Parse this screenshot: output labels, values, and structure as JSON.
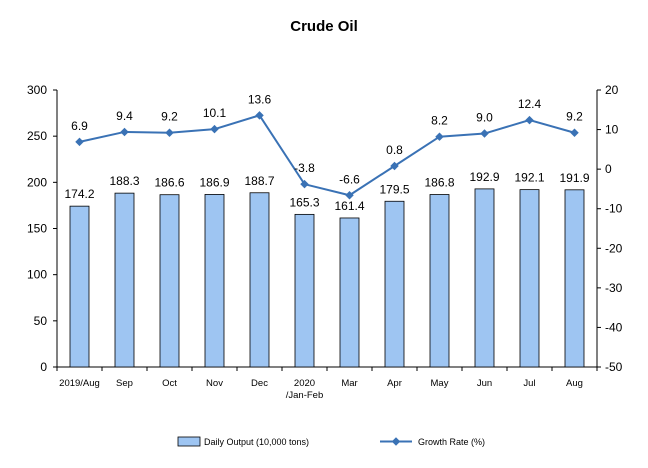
{
  "chart_data": {
    "type": "bar+line",
    "title": "Crude Oil",
    "categories": [
      [
        "2019/Aug"
      ],
      [
        "Sep"
      ],
      [
        "Oct"
      ],
      [
        "Nov"
      ],
      [
        "Dec"
      ],
      [
        "2020",
        "/Jan-Feb"
      ],
      [
        "Mar"
      ],
      [
        "Apr"
      ],
      [
        "May"
      ],
      [
        "Jun"
      ],
      [
        "Jul"
      ],
      [
        "Aug"
      ]
    ],
    "series": [
      {
        "name": "Daily Output (10,000 tons)",
        "type": "bar",
        "axis": "left",
        "values": [
          174.2,
          188.3,
          186.6,
          186.9,
          188.7,
          165.3,
          161.4,
          179.5,
          186.8,
          192.9,
          192.1,
          191.9
        ],
        "labels": [
          "174.2",
          "188.3",
          "186.6",
          "186.9",
          "188.7",
          "165.3",
          "161.4",
          "179.5",
          "186.8",
          "192.9",
          "192.1",
          "191.9"
        ],
        "color": "#9ec5f2"
      },
      {
        "name": "Growth Rate (%)",
        "type": "line",
        "axis": "right",
        "values": [
          6.9,
          9.4,
          9.2,
          10.1,
          13.6,
          -3.8,
          -6.6,
          0.8,
          8.2,
          9.0,
          12.4,
          9.2
        ],
        "labels": [
          "6.9",
          "9.4",
          "9.2",
          "10.1",
          "13.6",
          "-3.8",
          "-6.6",
          "0.8",
          "8.2",
          "9.0",
          "12.4",
          "9.2"
        ],
        "color": "#3a72b5"
      }
    ],
    "y_left": {
      "range": [
        0,
        300
      ],
      "ticks": [
        "0",
        "50",
        "100",
        "150",
        "200",
        "250",
        "300"
      ]
    },
    "y_right": {
      "range": [
        -50,
        20
      ],
      "ticks": [
        "-50",
        "-40",
        "-30",
        "-20",
        "-10",
        "0",
        "10",
        "20"
      ]
    },
    "grid": false,
    "legend": "bottom"
  }
}
